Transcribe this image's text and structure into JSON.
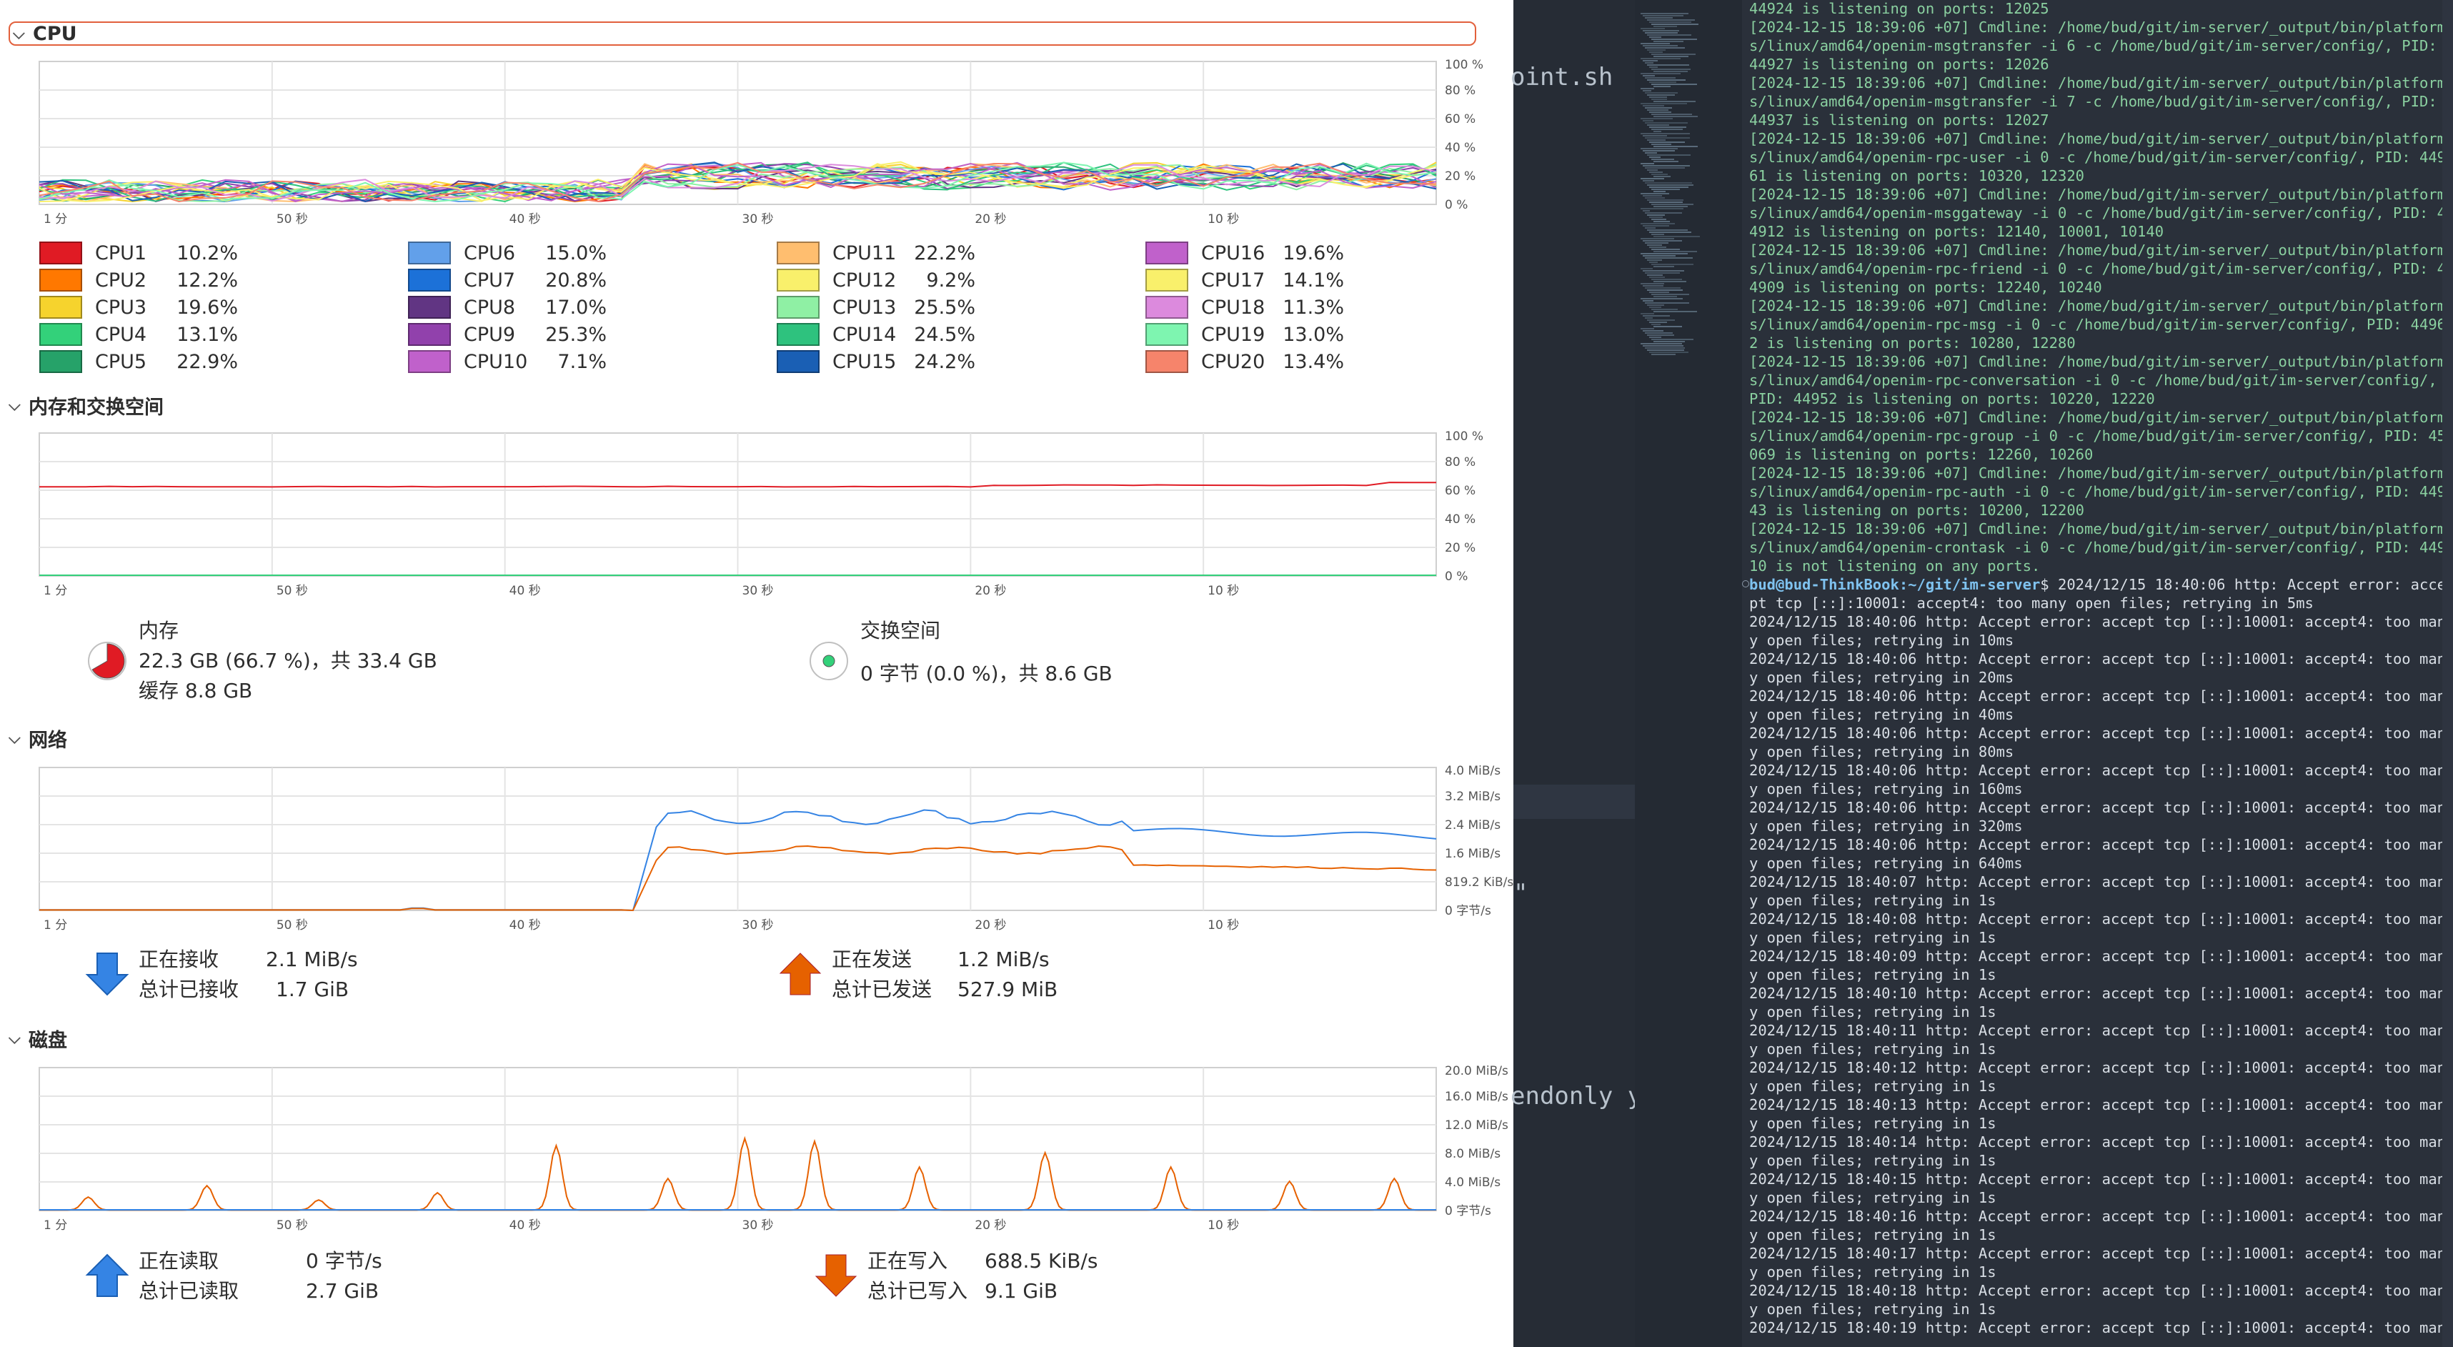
{
  "colors": {
    "cpu1": "#e01b24",
    "cpu2": "#ff7800",
    "cpu3": "#f6d32d",
    "cpu4": "#33d17a",
    "cpu5": "#26a269",
    "cpu6": "#62a0ea",
    "cpu7": "#1c71d8",
    "cpu8": "#613583",
    "cpu9": "#9141ac",
    "cpu10": "#c061cb",
    "cpu11": "#ffbe6f",
    "cpu12": "#f9f06b",
    "cpu13": "#8ff0a4",
    "cpu14": "#2ec27e",
    "cpu15": "#1a5fb4",
    "cpu16": "#c061cb",
    "cpu17": "#f9f06b",
    "cpu18": "#dc8add",
    "cpu19": "#7ef5b0",
    "cpu20": "#f6846b",
    "memory": "#e01b24",
    "swap": "#33d17a",
    "receive": "#3584e4",
    "send": "#e66100",
    "terminal_green": "#8ad0a0"
  },
  "cpu": {
    "header": "CPU",
    "time_ticks": [
      "1 分",
      "50 秒",
      "40 秒",
      "30 秒",
      "20 秒",
      "10 秒"
    ],
    "y_ticks": [
      "100 %",
      "80 %",
      "60 %",
      "40 %",
      "20 %",
      "0 %"
    ],
    "cores": [
      {
        "name": "CPU1",
        "value": "10.2%"
      },
      {
        "name": "CPU2",
        "value": "12.2%"
      },
      {
        "name": "CPU3",
        "value": "19.6%"
      },
      {
        "name": "CPU4",
        "value": "13.1%"
      },
      {
        "name": "CPU5",
        "value": "22.9%"
      },
      {
        "name": "CPU6",
        "value": "15.0%"
      },
      {
        "name": "CPU7",
        "value": "20.8%"
      },
      {
        "name": "CPU8",
        "value": "17.0%"
      },
      {
        "name": "CPU9",
        "value": "25.3%"
      },
      {
        "name": "CPU10",
        "value": "7.1%"
      },
      {
        "name": "CPU11",
        "value": "22.2%"
      },
      {
        "name": "CPU12",
        "value": "9.2%"
      },
      {
        "name": "CPU13",
        "value": "25.5%"
      },
      {
        "name": "CPU14",
        "value": "24.5%"
      },
      {
        "name": "CPU15",
        "value": "24.2%"
      },
      {
        "name": "CPU16",
        "value": "19.6%"
      },
      {
        "name": "CPU17",
        "value": "14.1%"
      },
      {
        "name": "CPU18",
        "value": "11.3%"
      },
      {
        "name": "CPU19",
        "value": "13.0%"
      },
      {
        "name": "CPU20",
        "value": "13.4%"
      }
    ]
  },
  "memory": {
    "header": "内存和交换空间",
    "y_ticks": [
      "100 %",
      "80 %",
      "60 %",
      "40 %",
      "20 %",
      "0 %"
    ],
    "mem_title": "内存",
    "mem_line": "22.3 GB (66.7 %)，共 33.4 GB",
    "mem_cache": "缓存 8.8 GB",
    "mem_fraction": 0.667,
    "swap_title": "交换空间",
    "swap_line": "0 字节 (0.0 %)，共 8.6 GB",
    "swap_fraction": 0.0
  },
  "network": {
    "header": "网络",
    "y_ticks": [
      "4.0 MiB/s",
      "3.2 MiB/s",
      "2.4 MiB/s",
      "1.6 MiB/s",
      "819.2 KiB/s",
      "0 字节/s"
    ],
    "recv_label": "正在接收",
    "recv_value": "2.1 MiB/s",
    "recv_total_label": "总计已接收",
    "recv_total_value": "1.7 GiB",
    "send_label": "正在发送",
    "send_value": "1.2 MiB/s",
    "send_total_label": "总计已发送",
    "send_total_value": "527.9 MiB"
  },
  "disk": {
    "header": "磁盘",
    "y_ticks": [
      "20.0 MiB/s",
      "16.0 MiB/s",
      "12.0 MiB/s",
      "8.0 MiB/s",
      "4.0 MiB/s",
      "0 字节/s"
    ],
    "read_label": "正在读取",
    "read_value": "0 字节/s",
    "read_total_label": "总计已读取",
    "read_total_value": "2.7 GiB",
    "write_label": "正在写入",
    "write_value": "688.5 KiB/s",
    "write_total_label": "总计已写入",
    "write_total_value": "9.1 GiB"
  },
  "editor": {
    "fragment1": "oint.sh",
    "fragment2": "endonly y",
    "fragment3": "\""
  },
  "terminal": {
    "prompt_user": "bud@bud-ThinkBook:~/git/im-server",
    "lines": [
      "44924 is listening on ports: 12025",
      "[2024-12-15 18:39:06 +07] Cmdline: /home/bud/git/im-server/_output/bin/platform",
      "s/linux/amd64/openim-msgtransfer -i 6 -c /home/bud/git/im-server/config/, PID:",
      "44927 is listening on ports: 12026",
      "[2024-12-15 18:39:06 +07] Cmdline: /home/bud/git/im-server/_output/bin/platform",
      "s/linux/amd64/openim-msgtransfer -i 7 -c /home/bud/git/im-server/config/, PID:",
      "44937 is listening on ports: 12027",
      "[2024-12-15 18:39:06 +07] Cmdline: /home/bud/git/im-server/_output/bin/platform",
      "s/linux/amd64/openim-rpc-user -i 0 -c /home/bud/git/im-server/config/, PID: 449",
      "61 is listening on ports: 10320, 12320",
      "[2024-12-15 18:39:06 +07] Cmdline: /home/bud/git/im-server/_output/bin/platform",
      "s/linux/amd64/openim-msggateway -i 0 -c /home/bud/git/im-server/config/, PID: 4",
      "4912 is listening on ports: 12140, 10001, 10140",
      "[2024-12-15 18:39:06 +07] Cmdline: /home/bud/git/im-server/_output/bin/platform",
      "s/linux/amd64/openim-rpc-friend -i 0 -c /home/bud/git/im-server/config/, PID: 4",
      "4909 is listening on ports: 12240, 10240",
      "[2024-12-15 18:39:06 +07] Cmdline: /home/bud/git/im-server/_output/bin/platform",
      "s/linux/amd64/openim-rpc-msg -i 0 -c /home/bud/git/im-server/config/, PID: 4496",
      "2 is listening on ports: 10280, 12280",
      "[2024-12-15 18:39:06 +07] Cmdline: /home/bud/git/im-server/_output/bin/platform",
      "s/linux/amd64/openim-rpc-conversation -i 0 -c /home/bud/git/im-server/config/,",
      "PID: 44952 is listening on ports: 10220, 12220",
      "[2024-12-15 18:39:06 +07] Cmdline: /home/bud/git/im-server/_output/bin/platform",
      "s/linux/amd64/openim-rpc-group -i 0 -c /home/bud/git/im-server/config/, PID: 45",
      "069 is listening on ports: 12260, 10260",
      "[2024-12-15 18:39:06 +07] Cmdline: /home/bud/git/im-server/_output/bin/platform",
      "s/linux/amd64/openim-rpc-auth -i 0 -c /home/bud/git/im-server/config/, PID: 449",
      "43 is listening on ports: 10200, 12200",
      "[2024-12-15 18:39:06 +07] Cmdline: /home/bud/git/im-server/_output/bin/platform",
      "s/linux/amd64/openim-crontask -i 0 -c /home/bud/git/im-server/config/, PID: 449",
      "10 is not listening on any ports."
    ],
    "prompt_rest": "$ 2024/12/15 18:40:06 http: Accept error: acce",
    "after_lines": [
      "pt tcp [::]:10001: accept4: too many open files; retrying in 5ms",
      "2024/12/15 18:40:06 http: Accept error: accept tcp [::]:10001: accept4: too man",
      "y open files; retrying in 10ms",
      "2024/12/15 18:40:06 http: Accept error: accept tcp [::]:10001: accept4: too man",
      "y open files; retrying in 20ms",
      "2024/12/15 18:40:06 http: Accept error: accept tcp [::]:10001: accept4: too man",
      "y open files; retrying in 40ms",
      "2024/12/15 18:40:06 http: Accept error: accept tcp [::]:10001: accept4: too man",
      "y open files; retrying in 80ms",
      "2024/12/15 18:40:06 http: Accept error: accept tcp [::]:10001: accept4: too man",
      "y open files; retrying in 160ms",
      "2024/12/15 18:40:06 http: Accept error: accept tcp [::]:10001: accept4: too man",
      "y open files; retrying in 320ms",
      "2024/12/15 18:40:06 http: Accept error: accept tcp [::]:10001: accept4: too man",
      "y open files; retrying in 640ms",
      "2024/12/15 18:40:07 http: Accept error: accept tcp [::]:10001: accept4: too man",
      "y open files; retrying in 1s",
      "2024/12/15 18:40:08 http: Accept error: accept tcp [::]:10001: accept4: too man",
      "y open files; retrying in 1s",
      "2024/12/15 18:40:09 http: Accept error: accept tcp [::]:10001: accept4: too man",
      "y open files; retrying in 1s",
      "2024/12/15 18:40:10 http: Accept error: accept tcp [::]:10001: accept4: too man",
      "y open files; retrying in 1s",
      "2024/12/15 18:40:11 http: Accept error: accept tcp [::]:10001: accept4: too man",
      "y open files; retrying in 1s",
      "2024/12/15 18:40:12 http: Accept error: accept tcp [::]:10001: accept4: too man",
      "y open files; retrying in 1s",
      "2024/12/15 18:40:13 http: Accept error: accept tcp [::]:10001: accept4: too man",
      "y open files; retrying in 1s",
      "2024/12/15 18:40:14 http: Accept error: accept tcp [::]:10001: accept4: too man",
      "y open files; retrying in 1s",
      "2024/12/15 18:40:15 http: Accept error: accept tcp [::]:10001: accept4: too man",
      "y open files; retrying in 1s",
      "2024/12/15 18:40:16 http: Accept error: accept tcp [::]:10001: accept4: too man",
      "y open files; retrying in 1s",
      "2024/12/15 18:40:17 http: Accept error: accept tcp [::]:10001: accept4: too man",
      "y open files; retrying in 1s",
      "2024/12/15 18:40:18 http: Accept error: accept tcp [::]:10001: accept4: too man",
      "y open files; retrying in 1s",
      "2024/12/15 18:40:19 http: Accept error: accept tcp [::]:10001: accept4: too man"
    ]
  }
}
